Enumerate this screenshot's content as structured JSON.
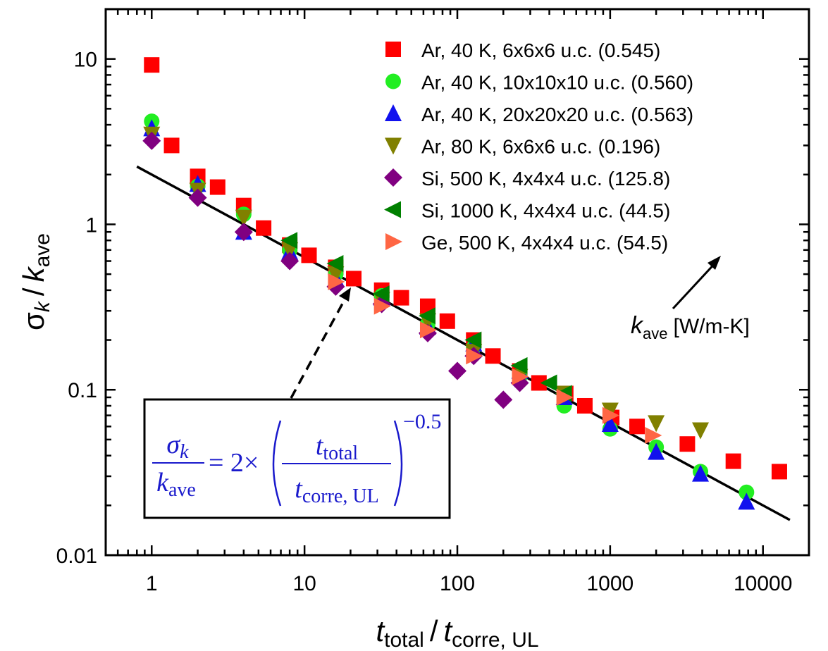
{
  "chart_data": {
    "type": "scatter",
    "xscale": "log",
    "yscale": "log",
    "xlim": [
      0.5,
      20000
    ],
    "ylim": [
      0.01,
      20
    ],
    "x_tick_labels": [
      "1",
      "10",
      "100",
      "1000",
      "10000"
    ],
    "y_tick_labels": [
      "0.01",
      "0.1",
      "1",
      "10"
    ],
    "xlabel": {
      "t1": "t",
      "s1": "total",
      "sep": "/",
      "t2": "t",
      "s2": "corre, UL"
    },
    "ylabel": {
      "sigma": "σ",
      "k1": "k",
      "sep": "/",
      "k2": "k",
      "sub": "ave"
    },
    "series": [
      {
        "name": "Ar, 40 K, 6x6x6 u.c. (0.545)",
        "marker": "square",
        "color": "#ff0000",
        "points": [
          [
            1,
            9.2
          ],
          [
            1.35,
            3.0
          ],
          [
            2,
            1.95
          ],
          [
            2.7,
            1.68
          ],
          [
            4,
            1.3
          ],
          [
            5.4,
            0.95
          ],
          [
            8,
            0.75
          ],
          [
            10.7,
            0.65
          ],
          [
            16,
            0.55
          ],
          [
            21,
            0.47
          ],
          [
            32,
            0.4
          ],
          [
            43,
            0.36
          ],
          [
            64,
            0.32
          ],
          [
            86,
            0.26
          ],
          [
            128,
            0.2
          ],
          [
            171,
            0.16
          ],
          [
            256,
            0.13
          ],
          [
            342,
            0.11
          ],
          [
            512,
            0.095
          ],
          [
            683,
            0.08
          ],
          [
            1024,
            0.068
          ],
          [
            1500,
            0.06
          ],
          [
            3200,
            0.047
          ],
          [
            6400,
            0.037
          ],
          [
            12800,
            0.032
          ]
        ]
      },
      {
        "name": "Ar, 40 K, 10x10x10 u.c. (0.560)",
        "marker": "circle",
        "color": "#22ee22",
        "points": [
          [
            1,
            4.2
          ],
          [
            2,
            1.7
          ],
          [
            4,
            1.15
          ],
          [
            8,
            0.7
          ],
          [
            16,
            0.5
          ],
          [
            32,
            0.37
          ],
          [
            64,
            0.25
          ],
          [
            128,
            0.18
          ],
          [
            256,
            0.12
          ],
          [
            500,
            0.08
          ],
          [
            1000,
            0.058
          ],
          [
            2000,
            0.045
          ],
          [
            3900,
            0.032
          ],
          [
            7800,
            0.024
          ]
        ]
      },
      {
        "name": "Ar, 40 K, 20x20x20 u.c. (0.563)",
        "marker": "triangle-up",
        "color": "#1111ee",
        "points": [
          [
            1,
            3.8
          ],
          [
            2,
            1.75
          ],
          [
            4,
            0.9
          ],
          [
            8,
            0.68
          ],
          [
            16,
            0.47
          ],
          [
            32,
            0.36
          ],
          [
            64,
            0.24
          ],
          [
            128,
            0.19
          ],
          [
            256,
            0.13
          ],
          [
            500,
            0.09
          ],
          [
            1000,
            0.062
          ],
          [
            2000,
            0.042
          ],
          [
            3900,
            0.031
          ],
          [
            7800,
            0.021
          ]
        ]
      },
      {
        "name": "Ar, 80 K, 6x6x6 u.c. (0.196)",
        "marker": "triangle-down",
        "color": "#808000",
        "points": [
          [
            1,
            3.5
          ],
          [
            2,
            1.6
          ],
          [
            4,
            1.1
          ],
          [
            8,
            0.7
          ],
          [
            16,
            0.5
          ],
          [
            32,
            0.35
          ],
          [
            64,
            0.26
          ],
          [
            128,
            0.17
          ],
          [
            256,
            0.12
          ],
          [
            500,
            0.095
          ],
          [
            1000,
            0.075
          ],
          [
            2000,
            0.063
          ],
          [
            3900,
            0.057
          ]
        ]
      },
      {
        "name": "Si, 500 K, 4x4x4 u.c. (125.8)",
        "marker": "diamond",
        "color": "#800080",
        "points": [
          [
            1,
            3.2
          ],
          [
            2,
            1.45
          ],
          [
            4,
            0.9
          ],
          [
            8,
            0.6
          ],
          [
            16,
            0.42
          ],
          [
            32,
            0.33
          ],
          [
            64,
            0.22
          ],
          [
            100,
            0.13
          ],
          [
            128,
            0.16
          ],
          [
            200,
            0.087
          ],
          [
            256,
            0.11
          ]
        ]
      },
      {
        "name": "Si, 1000 K, 4x4x4 u.c. (44.5)",
        "marker": "triangle-left",
        "color": "#008000",
        "points": [
          [
            8,
            0.8
          ],
          [
            16,
            0.58
          ],
          [
            32,
            0.38
          ],
          [
            64,
            0.28
          ],
          [
            128,
            0.2
          ],
          [
            256,
            0.14
          ],
          [
            400,
            0.11
          ],
          [
            500,
            0.095
          ]
        ]
      },
      {
        "name": "Ge, 500 K, 4x4x4 u.c. (54.5)",
        "marker": "triangle-right",
        "color": "#ff6644",
        "points": [
          [
            16,
            0.45
          ],
          [
            32,
            0.32
          ],
          [
            64,
            0.23
          ],
          [
            128,
            0.16
          ],
          [
            256,
            0.12
          ],
          [
            500,
            0.09
          ],
          [
            1000,
            0.07
          ],
          [
            1900,
            0.053
          ]
        ]
      }
    ],
    "fit_line": {
      "coefficient": 2,
      "exponent": -0.5,
      "x_range": [
        0.8,
        15000
      ],
      "color": "#000000"
    },
    "annotation_kave": {
      "k": "k",
      "sub": "ave",
      "units": "[W/m-K]"
    },
    "equation": {
      "num": "σ",
      "num_sub": "k",
      "den": "k",
      "den_sub": "ave",
      "eq_prefix": "= 2×",
      "inner_num": "t",
      "inner_num_sub": "total",
      "inner_den": "t",
      "inner_den_sub": "corre, UL",
      "exp": "−0.5"
    }
  }
}
